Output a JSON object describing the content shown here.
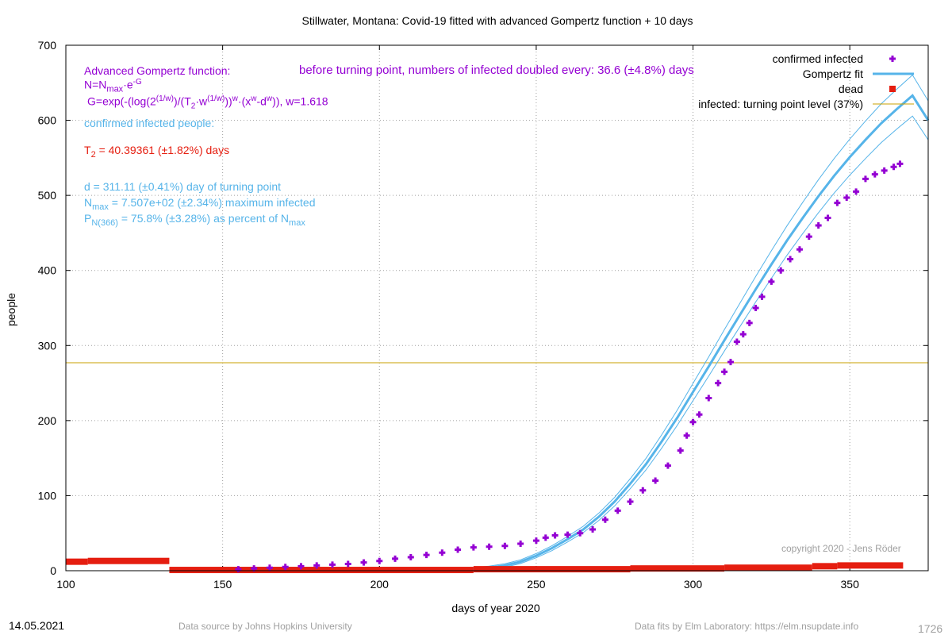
{
  "chart_data": {
    "type": "scatter",
    "title": "Stillwater,  Montana: Covid-19 fitted with advanced Gompertz function + 10 days",
    "xlabel": "days of year 2020",
    "ylabel": "people",
    "xlim": [
      100,
      375
    ],
    "ylim": [
      0,
      700
    ],
    "x_ticks": [
      100,
      150,
      200,
      250,
      300,
      350
    ],
    "y_ticks": [
      0,
      100,
      200,
      300,
      400,
      500,
      600,
      700
    ],
    "grid": true,
    "legend_position": "top-right",
    "legend": [
      {
        "label": "confirmed infected",
        "color": "#9400d3",
        "marker": "plus"
      },
      {
        "label": "Gompertz fit",
        "color": "#56b4e9",
        "marker": "line"
      },
      {
        "label": "dead",
        "color": "#e51e10",
        "marker": "square"
      },
      {
        "label": "infected: turning point level (37%)",
        "color": "#c8a000",
        "marker": "thin-line"
      }
    ],
    "turning_point_level": 277,
    "fit": {
      "T2": 40.39361,
      "d": 311.11,
      "Nmax": 750.7,
      "w": 1.618
    },
    "series": [
      {
        "name": "confirmed infected",
        "points": [
          [
            155,
            2
          ],
          [
            160,
            3
          ],
          [
            165,
            4
          ],
          [
            170,
            5
          ],
          [
            175,
            6
          ],
          [
            180,
            7
          ],
          [
            185,
            8
          ],
          [
            190,
            9
          ],
          [
            195,
            11
          ],
          [
            200,
            13
          ],
          [
            205,
            16
          ],
          [
            210,
            18
          ],
          [
            215,
            21
          ],
          [
            220,
            24
          ],
          [
            225,
            28
          ],
          [
            230,
            31
          ],
          [
            235,
            32
          ],
          [
            240,
            33
          ],
          [
            245,
            36
          ],
          [
            250,
            40
          ],
          [
            253,
            44
          ],
          [
            256,
            47
          ],
          [
            260,
            48
          ],
          [
            264,
            50
          ],
          [
            268,
            55
          ],
          [
            272,
            68
          ],
          [
            276,
            80
          ],
          [
            280,
            92
          ],
          [
            284,
            107
          ],
          [
            288,
            120
          ],
          [
            292,
            140
          ],
          [
            296,
            160
          ],
          [
            298,
            180
          ],
          [
            300,
            198
          ],
          [
            302,
            208
          ],
          [
            305,
            230
          ],
          [
            308,
            250
          ],
          [
            310,
            265
          ],
          [
            312,
            278
          ],
          [
            314,
            305
          ],
          [
            316,
            315
          ],
          [
            318,
            330
          ],
          [
            320,
            350
          ],
          [
            322,
            365
          ],
          [
            325,
            385
          ],
          [
            328,
            400
          ],
          [
            331,
            415
          ],
          [
            334,
            428
          ],
          [
            337,
            445
          ],
          [
            340,
            460
          ],
          [
            343,
            470
          ],
          [
            346,
            490
          ],
          [
            349,
            497
          ],
          [
            352,
            505
          ],
          [
            355,
            522
          ],
          [
            358,
            528
          ],
          [
            361,
            533
          ],
          [
            364,
            538
          ],
          [
            366,
            542
          ]
        ]
      },
      {
        "name": "dead",
        "segments": [
          [
            100,
            107,
            12
          ],
          [
            107,
            133,
            13
          ],
          [
            133,
            230,
            1
          ],
          [
            230,
            280,
            2
          ],
          [
            280,
            310,
            3
          ],
          [
            310,
            338,
            4
          ],
          [
            338,
            346,
            6
          ],
          [
            346,
            367,
            7
          ]
        ]
      },
      {
        "name": "Gompertz fit",
        "x": [
          220,
          225,
          230,
          235,
          240,
          245,
          250,
          255,
          260,
          265,
          270,
          275,
          280,
          285,
          290,
          295,
          300,
          305,
          310,
          315,
          320,
          325,
          330,
          335,
          340,
          345,
          350,
          355,
          360,
          365,
          370,
          375
        ],
        "values": [
          0.2,
          1,
          2,
          4,
          7,
          12,
          20,
          30,
          42,
          55,
          72,
          92,
          116,
          142,
          172,
          204,
          238,
          272,
          307,
          341,
          375,
          408,
          440,
          470,
          499,
          526,
          551,
          574,
          596,
          615,
          633,
          600
        ]
      }
    ]
  },
  "annotations": {
    "formula_title": "Advanced Gompertz function:",
    "formula_n_pre": "N=N",
    "formula_n_sub": "max",
    "formula_n_post": "·e",
    "formula_n_sup": "-G",
    "formula_g_1": "G=exp(-(log(2",
    "formula_g_sup1": "(1/w)",
    "formula_g_2": ")/(T",
    "formula_g_sub2": "2",
    "formula_g_3": "·w",
    "formula_g_sup3": "(1/w)",
    "formula_g_4": "))",
    "formula_g_sup4": "w",
    "formula_g_5": "·(x",
    "formula_g_sup5": "w",
    "formula_g_6": "-d",
    "formula_g_sup6": "w",
    "formula_g_7": ")), w=1.618",
    "doubling": "before turning point, numbers of infected doubled every: 36.6 (±4.8%) days",
    "confirmed_label": "confirmed infected people:",
    "t2_pre": "T",
    "t2_sub": "2",
    "t2_post": " = 40.39361 (±1.82%) days",
    "d_line": "d = 311.11 (±0.41%) day of turning point",
    "nmax_pre": "N",
    "nmax_sub": "max",
    "nmax_post": " = 7.507e+02 (±2.34%) maximum infected",
    "p_pre": "P",
    "p_sub": "N(366)",
    "p_mid": " = 75.8% (±3.28%) as percent of N",
    "p_sub2": "max",
    "copyright": "copyright 2020 - Jens Röder"
  },
  "footer": {
    "date": "14.05.2021",
    "source": "Data source by Johns Hopkins University",
    "fits": "Data fits by Elm Laboratory: https://elm.nsupdate.info",
    "number": "1726"
  },
  "colors": {
    "purple": "#9400d3",
    "blue": "#56b4e9",
    "red": "#e51e10",
    "gold": "#c8a000",
    "grid": "#a0a0a0"
  }
}
